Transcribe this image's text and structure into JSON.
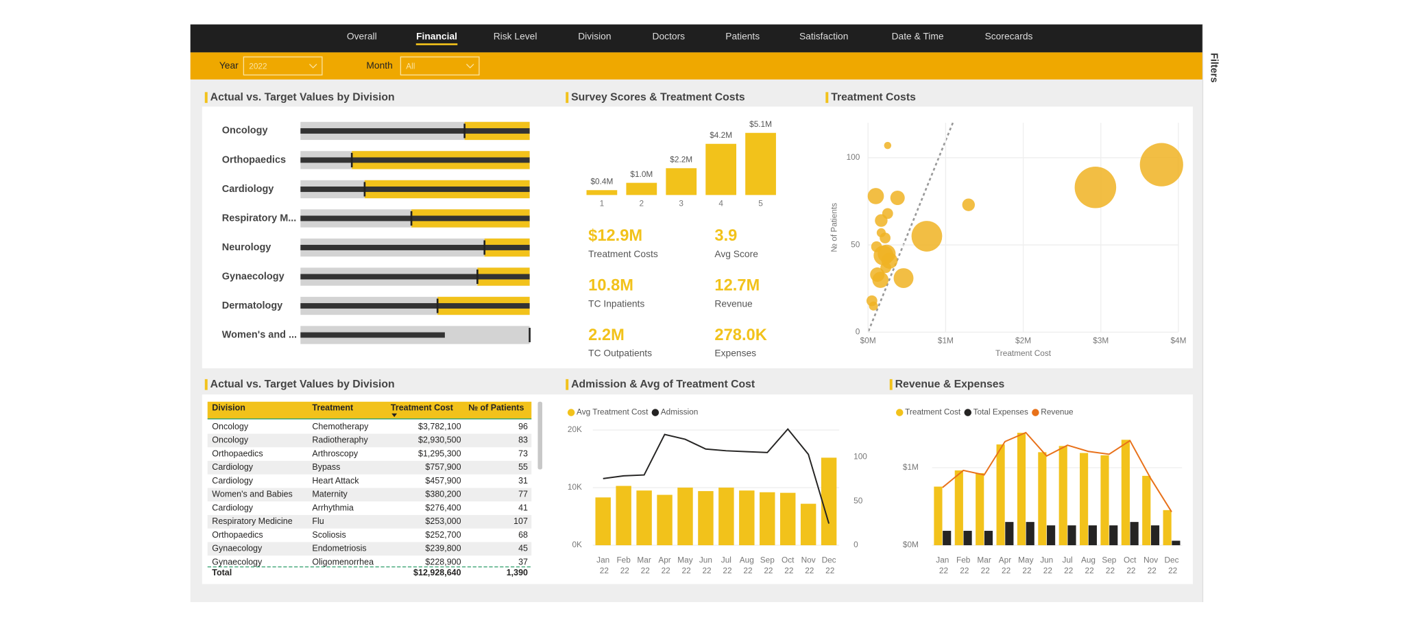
{
  "nav": {
    "tabs": [
      "Overall",
      "Financial",
      "Risk Level",
      "Division",
      "Doctors",
      "Patients",
      "Satisfaction",
      "Date & Time",
      "Scorecards"
    ],
    "active": 1
  },
  "filters": [
    {
      "label": "Year",
      "value": "2022"
    },
    {
      "label": "Month",
      "value": "All"
    }
  ],
  "filters_pane": "Filters",
  "bullet": {
    "title": "Actual vs. Target Values by Division",
    "categories": [
      "Oncology",
      "Orthopaedics",
      "Cardiology",
      "Respiratory M...",
      "Neurology",
      "Gynaecology",
      "Dermatology",
      "Women's and ..."
    ],
    "actual": [
      100,
      100,
      100,
      100,
      100,
      100,
      100,
      63
    ],
    "target": [
      71.6,
      22.4,
      28,
      48.4,
      80.3,
      77.2,
      59.8,
      100
    ]
  },
  "survey": {
    "title": "Survey Scores & Treatment Costs",
    "chart": {
      "type": "bar",
      "categories": [
        "1",
        "2",
        "3",
        "4",
        "5"
      ],
      "values": [
        0.4,
        1.0,
        2.2,
        4.2,
        5.1
      ],
      "value_labels": [
        "$0.4M",
        "$1.0M",
        "$2.2M",
        "$4.2M",
        "$5.1M"
      ],
      "color": "#f2c21b"
    },
    "kpis": [
      {
        "value": "$12.9M",
        "label": "Treatment Costs"
      },
      {
        "value": "3.9",
        "label": "Avg Score"
      },
      {
        "value": "10.8M",
        "label": "TC Inpatients"
      },
      {
        "value": "12.7M",
        "label": "Revenue"
      },
      {
        "value": "2.2M",
        "label": "TC Outpatients"
      },
      {
        "value": "278.0K",
        "label": "Expenses"
      }
    ]
  },
  "scatter": {
    "title": "Treatment Costs",
    "chart": {
      "type": "scatter",
      "color": "#f0b323",
      "grid": true,
      "x_label": "Treatment Cost",
      "y_label": "№ of Patients",
      "x": [
        3782100,
        2930500,
        1295300,
        757900,
        457900,
        380200,
        276400,
        253000,
        252700,
        239800,
        228900,
        100000,
        170000,
        170000,
        110000,
        200000,
        120000,
        160000,
        50000,
        70000,
        220000
      ],
      "y": [
        96,
        83,
        73,
        55,
        31,
        77,
        41,
        107,
        68,
        45,
        37,
        78,
        64,
        57,
        49,
        44,
        33,
        30,
        18,
        15,
        54
      ],
      "sizes": [
        24,
        23,
        7,
        17,
        11,
        8,
        9,
        4,
        6,
        10,
        6,
        9,
        7,
        5,
        6,
        11,
        8,
        9,
        6,
        5,
        6
      ],
      "xlim": [
        0,
        4000000
      ],
      "xticks": [
        {
          "value": 0,
          "label": "$0M"
        },
        {
          "value": 1000000,
          "label": "$1M"
        },
        {
          "value": 2000000,
          "label": "$2M"
        },
        {
          "value": 3000000,
          "label": "$3M"
        },
        {
          "value": 4000000,
          "label": "$4M"
        }
      ],
      "ylim": [
        0,
        120
      ],
      "yticks": [
        0,
        50,
        100
      ]
    }
  },
  "table": {
    "title": "Actual vs. Target Values by Division",
    "columns": [
      "Division",
      "Treatment",
      "Treatment Cost",
      "№ of Patients"
    ],
    "rows": [
      [
        "Oncology",
        "Chemotherapy",
        "$3,782,100",
        "96"
      ],
      [
        "Oncology",
        "Radiotheraphy",
        "$2,930,500",
        "83"
      ],
      [
        "Orthopaedics",
        "Arthroscopy",
        "$1,295,300",
        "73"
      ],
      [
        "Cardiology",
        "Bypass",
        "$757,900",
        "55"
      ],
      [
        "Cardiology",
        "Heart Attack",
        "$457,900",
        "31"
      ],
      [
        "Women's and Babies",
        "Maternity",
        "$380,200",
        "77"
      ],
      [
        "Cardiology",
        "Arrhythmia",
        "$276,400",
        "41"
      ],
      [
        "Respiratory Medicine",
        "Flu",
        "$253,000",
        "107"
      ],
      [
        "Orthopaedics",
        "Scoliosis",
        "$252,700",
        "68"
      ],
      [
        "Gynaecology",
        "Endometriosis",
        "$239,800",
        "45"
      ],
      [
        "Gynaecology",
        "Oligomenorrhea",
        "$228,900",
        "37"
      ]
    ],
    "total": {
      "label": "Total",
      "cost": "$12,928,640",
      "patients": "1,390"
    }
  },
  "combo": {
    "title": "Admission & Avg of Treatment Cost",
    "chart": {
      "type": "bar",
      "categories": [
        "Jan 22",
        "Feb 22",
        "Mar 22",
        "Apr 22",
        "May 22",
        "Jun 22",
        "Jul 22",
        "Aug 22",
        "Sep 22",
        "Oct 22",
        "Nov 22",
        "Dec 22"
      ],
      "series": [
        {
          "name": "Avg Treatment Cost",
          "color": "#f2c21b",
          "values": [
            8300,
            10300,
            9500,
            8750,
            10000,
            9400,
            10000,
            9500,
            9200,
            9100,
            7200,
            15200
          ]
        },
        {
          "name": "Admission",
          "color": "#252423",
          "type": "line",
          "axis": "y2",
          "values": [
            75.5,
            78.6,
            79.6,
            125.5,
            120,
            109,
            107,
            106,
            105,
            131.6,
            103,
            24.5
          ]
        }
      ],
      "ylim": [
        0,
        21000
      ],
      "yticks": [
        {
          "value": 0,
          "label": "0K"
        },
        {
          "value": 10000,
          "label": "10K"
        },
        {
          "value": 20000,
          "label": "20K"
        }
      ],
      "y2lim": [
        0,
        137
      ],
      "y2ticks": [
        0,
        50,
        100
      ]
    }
  },
  "revexp": {
    "title": "Revenue & Expenses",
    "chart": {
      "type": "bar",
      "categories": [
        "Jan 22",
        "Feb 22",
        "Mar 22",
        "Apr 22",
        "May 22",
        "Jun 22",
        "Jul 22",
        "Aug 22",
        "Sep 22",
        "Oct 22",
        "Nov 22",
        "Dec 22"
      ],
      "series": [
        {
          "name": "Treatment Cost",
          "color": "#f2c21b",
          "values": [
            756000,
            965000,
            930000,
            1300000,
            1450000,
            1200000,
            1280000,
            1190000,
            1160000,
            1360000,
            895000,
            453000
          ]
        },
        {
          "name": "Total Expenses",
          "color": "#252423",
          "values": [
            186000,
            186000,
            186000,
            300000,
            300000,
            256000,
            256000,
            256000,
            256000,
            300000,
            256000,
            58000
          ]
        },
        {
          "name": "Revenue",
          "color": "#e8711a",
          "type": "line",
          "values": [
            744000,
            965000,
            907000,
            1337000,
            1453000,
            1151000,
            1290000,
            1210000,
            1174000,
            1349000,
            860000,
            430000
          ]
        }
      ],
      "ylim": [
        0,
        1560000
      ],
      "yticks": [
        {
          "value": 0,
          "label": "$0M"
        },
        {
          "value": 1000000,
          "label": "$1M"
        }
      ]
    }
  }
}
